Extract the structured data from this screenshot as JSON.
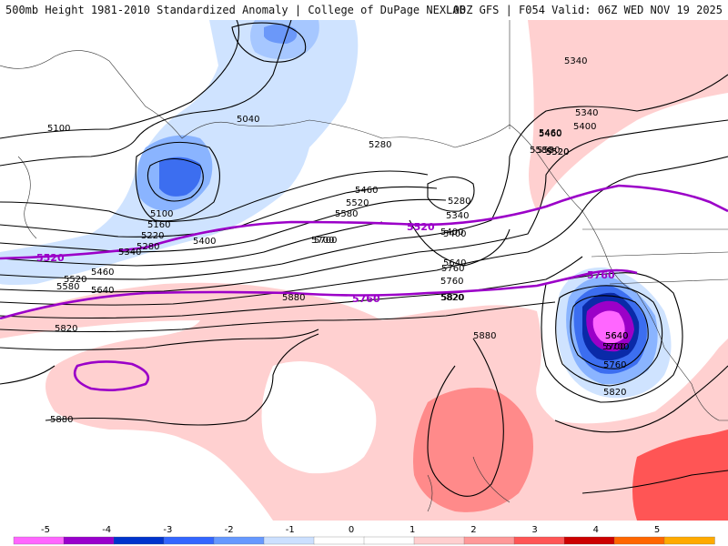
{
  "header": {
    "title_left": "500mb Height 1981-2010 Standardized Anomaly | College of DuPage NEXLAB",
    "title_right": "00Z GFS | F054 Valid: 06Z WED NOV 19 2025"
  },
  "contours": {
    "black_labels": [
      "5100",
      "5040",
      "5100",
      "5160",
      "5220",
      "5280",
      "5340",
      "5400",
      "5460",
      "5520",
      "5580",
      "5640",
      "5700",
      "5760",
      "5820",
      "5880",
      "5820",
      "5880",
      "5280",
      "5340",
      "5400",
      "5460",
      "5520",
      "5580",
      "5640",
      "5700",
      "5760",
      "5820",
      "5880",
      "5400",
      "5460",
      "5520",
      "5580",
      "5640",
      "5700",
      "5760",
      "5820",
      "5340",
      "5340",
      "5400",
      "5460",
      "5520",
      "5580",
      "5640",
      "5700",
      "5280"
    ],
    "purple_labels": [
      "5520",
      "5520",
      "5760",
      "5760"
    ]
  },
  "legend": {
    "ticks": [
      "-5",
      "-4",
      "-3",
      "-2",
      "-1",
      "0",
      "1",
      "2",
      "3",
      "4",
      "5"
    ],
    "colors": [
      "#ff66ff",
      "#9900cc",
      "#0033cc",
      "#3366ff",
      "#6699ff",
      "#cce0ff",
      "#ffffff",
      "#ffffff",
      "#ffd0d0",
      "#ff9999",
      "#ff5555",
      "#cc0000",
      "#ff6600",
      "#ffaa00"
    ]
  }
}
